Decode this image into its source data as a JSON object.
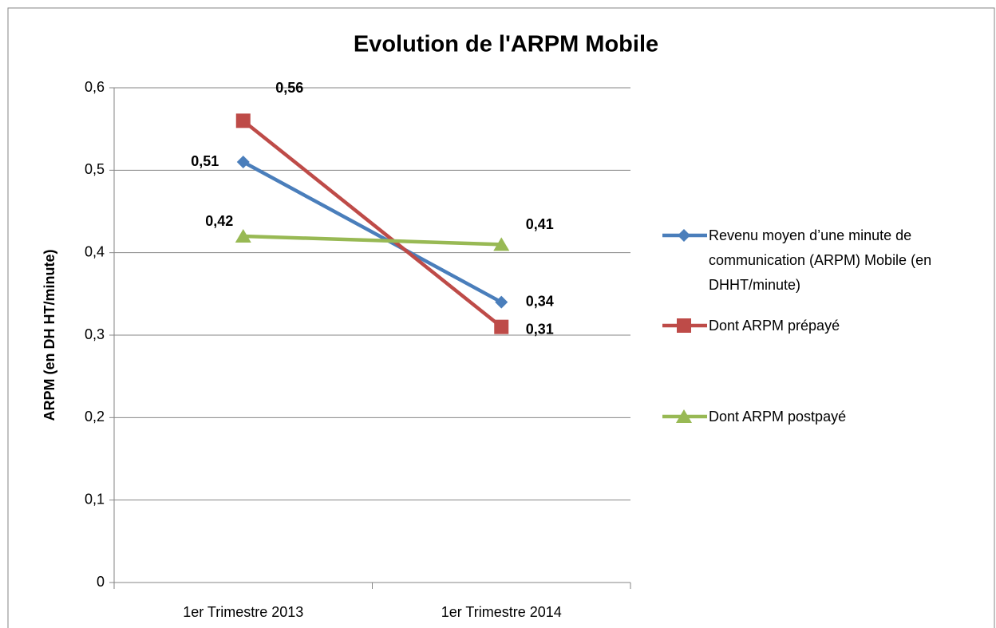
{
  "chart_data": {
    "type": "line",
    "title": "Evolution de l'ARPM Mobile",
    "y_label": "ARPM (en DH HT/minute)",
    "categories": [
      "1er Trimestre 2013",
      "1er Trimestre 2014"
    ],
    "series": [
      {
        "name": "Revenu moyen d’une minute de communication (ARPM) Mobile (en DHHT/minute)",
        "color": "#4a7ebb",
        "marker": "diamond",
        "values": [
          0.51,
          0.34
        ],
        "value_labels": [
          "0,51",
          "0,34"
        ]
      },
      {
        "name": "Dont ARPM prépayé",
        "color": "#be4b48",
        "marker": "square",
        "values": [
          0.56,
          0.31
        ],
        "value_labels": [
          "0,56",
          "0,31"
        ]
      },
      {
        "name": "Dont ARPM postpayé",
        "color": "#98b954",
        "marker": "triangle",
        "values": [
          0.42,
          0.41
        ],
        "value_labels": [
          "0,42",
          "0,41"
        ]
      }
    ],
    "ylim": [
      0,
      0.6
    ],
    "yticks": [
      0,
      {
        "value": 0.1,
        "label": "0,1"
      },
      {
        "value": 0.2,
        "label": "0,2"
      },
      {
        "value": 0.3,
        "label": "0,3"
      },
      {
        "value": 0.4,
        "label": "0,4"
      },
      {
        "value": 0.5,
        "label": "0,5"
      },
      {
        "value": 0.6,
        "label": "0,6"
      }
    ],
    "grid": true,
    "legend": "right"
  }
}
